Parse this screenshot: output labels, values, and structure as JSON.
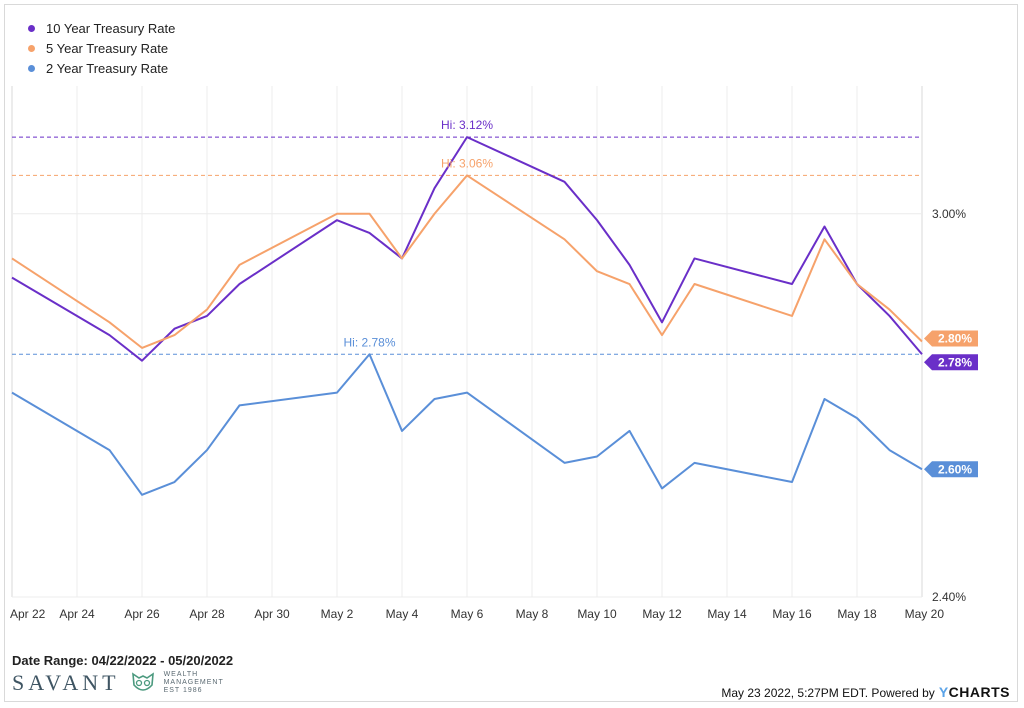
{
  "chart_data": {
    "type": "line",
    "x_ticks": [
      "Apr 22",
      "Apr 24",
      "Apr 26",
      "Apr 28",
      "Apr 30",
      "May 2",
      "May 4",
      "May 6",
      "May 8",
      "May 10",
      "May 12",
      "May 14",
      "May 16",
      "May 18",
      "May 20"
    ],
    "x_dates": [
      "2022-04-22",
      "2022-04-25",
      "2022-04-26",
      "2022-04-27",
      "2022-04-28",
      "2022-04-29",
      "2022-05-02",
      "2022-05-03",
      "2022-05-04",
      "2022-05-05",
      "2022-05-06",
      "2022-05-09",
      "2022-05-10",
      "2022-05-11",
      "2022-05-12",
      "2022-05-13",
      "2022-05-16",
      "2022-05-17",
      "2022-05-18",
      "2022-05-19",
      "2022-05-20"
    ],
    "series": [
      {
        "name": "10 Year Treasury Rate",
        "color": "#6a2fc8",
        "values": [
          2.9,
          2.81,
          2.77,
          2.82,
          2.84,
          2.89,
          2.99,
          2.97,
          2.93,
          3.04,
          3.12,
          3.05,
          2.99,
          2.92,
          2.83,
          2.93,
          2.89,
          2.98,
          2.89,
          2.84,
          2.78
        ],
        "hi_label": "Hi: 3.12%",
        "end_label": "2.78%"
      },
      {
        "name": "5 Year Treasury Rate",
        "color": "#f6a26b",
        "values": [
          2.93,
          2.83,
          2.79,
          2.81,
          2.85,
          2.92,
          3.0,
          3.0,
          2.93,
          3.0,
          3.06,
          2.96,
          2.91,
          2.89,
          2.81,
          2.89,
          2.84,
          2.96,
          2.89,
          2.85,
          2.8
        ],
        "hi_label": "Hi: 3.06%",
        "end_label": "2.80%"
      },
      {
        "name": "2 Year Treasury Rate",
        "color": "#5a8fd8",
        "values": [
          2.72,
          2.63,
          2.56,
          2.58,
          2.63,
          2.7,
          2.72,
          2.78,
          2.66,
          2.71,
          2.72,
          2.61,
          2.62,
          2.66,
          2.57,
          2.61,
          2.58,
          2.71,
          2.68,
          2.63,
          2.6
        ],
        "hi_label": "Hi: 2.78%",
        "end_label": "2.60%"
      }
    ],
    "y_ticks": [
      2.4,
      3.0
    ],
    "y_tick_labels": [
      "2.40%",
      "3.00%"
    ],
    "ylim": [
      2.4,
      3.2
    ],
    "grid": true,
    "legend": "top-left"
  },
  "footer": {
    "date_range": "Date Range: 04/22/2022 - 05/20/2022",
    "timestamp": "May 23 2022, 5:27PM EDT. Powered by",
    "brand_y": "Y",
    "brand_rest": "CHARTS"
  },
  "logo": {
    "word": "SAVANT",
    "sub1": "WEALTH",
    "sub2": "MANAGEMENT",
    "sub3": "EST 1986"
  }
}
